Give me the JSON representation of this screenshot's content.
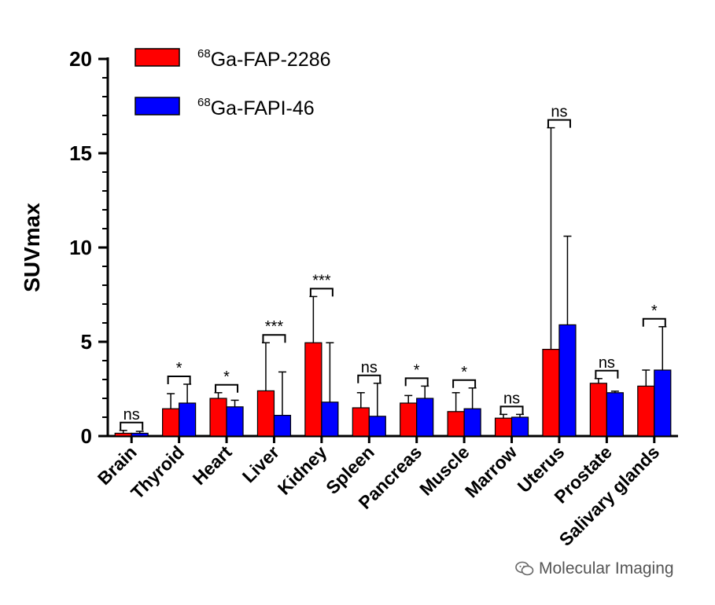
{
  "chart_data": {
    "type": "bar",
    "ylabel": "SUVmax",
    "ylim": [
      0,
      20
    ],
    "yticks": [
      "0",
      "5",
      "10",
      "15",
      "20"
    ],
    "grid": false,
    "legend_position": "top-left",
    "categories": [
      "Brain",
      "Thyroid",
      "Heart",
      "Liver",
      "Kidney",
      "Spleen",
      "Pancreas",
      "Muscle",
      "Marrow",
      "Uterus",
      "Prostate",
      "Salivary glands"
    ],
    "series": [
      {
        "name_sup": "68",
        "name": "Ga-FAP-2286",
        "color": "#ff0000",
        "values": [
          0.15,
          1.45,
          2.0,
          2.4,
          4.95,
          1.5,
          1.75,
          1.3,
          0.95,
          4.6,
          2.8,
          2.65
        ],
        "errors": [
          0.15,
          0.8,
          0.3,
          2.55,
          2.45,
          0.8,
          0.4,
          1.0,
          0.2,
          11.75,
          0.25,
          0.85
        ]
      },
      {
        "name_sup": "68",
        "name": "Ga-FAPI-46",
        "color": "#0000ff",
        "values": [
          0.15,
          1.75,
          1.55,
          1.1,
          1.8,
          1.05,
          2.0,
          1.45,
          1.0,
          5.9,
          2.3,
          3.5
        ],
        "errors": [
          0.1,
          1.0,
          0.35,
          2.3,
          3.15,
          1.75,
          0.65,
          1.1,
          0.15,
          4.7,
          0.08,
          2.3
        ]
      }
    ],
    "significance": [
      "ns",
      "*",
      "*",
      "***",
      "***",
      "ns",
      "*",
      "*",
      "ns",
      "ns",
      "ns",
      "*"
    ]
  },
  "watermark": {
    "text": "Molecular Imaging"
  }
}
